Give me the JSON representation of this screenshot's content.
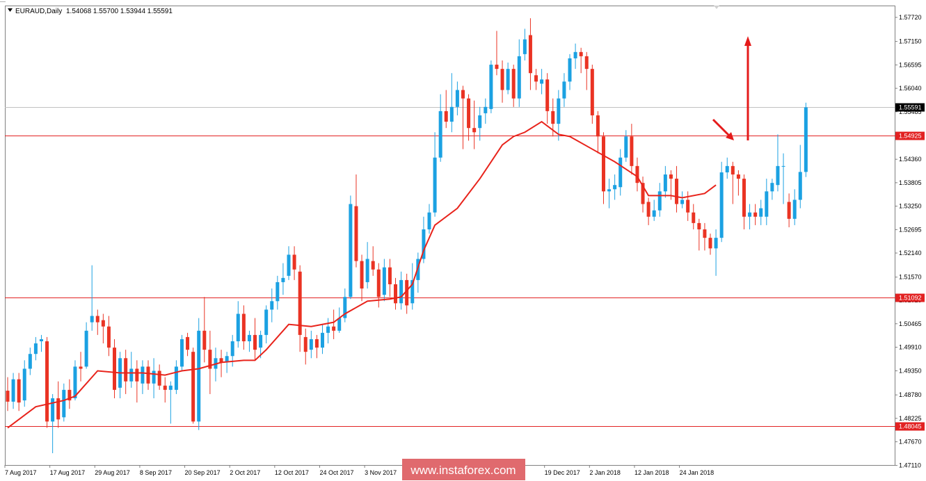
{
  "header": {
    "symbol": "EURAUD,Daily",
    "ohlc": "1.54068 1.55700 1.53944 1.55591",
    "menu_icon": "triangle-down-icon"
  },
  "watermark": "www.instaforex.com",
  "colors": {
    "bull": "#1BA1E2",
    "bear": "#EA3323",
    "ma": "#E8231B",
    "level": "#E22222",
    "current_line": "#C0C0C0",
    "current_box": "#000000",
    "watermark_bg": "#E06A6E",
    "arrow": "#E51B1B"
  },
  "chart_data": {
    "type": "candlestick",
    "symbol": "EURAUD",
    "timeframe": "Daily",
    "ylim": [
      1.4712,
      1.58
    ],
    "y_ticks": [
      "1.57720",
      "1.57150",
      "1.56595",
      "1.56040",
      "1.55485",
      "1.54925",
      "1.54360",
      "1.53805",
      "1.53250",
      "1.52695",
      "1.52140",
      "1.51570",
      "1.51025",
      "1.50465",
      "1.49910",
      "1.49350",
      "1.48780",
      "1.48225",
      "1.47670",
      "1.47110"
    ],
    "x_ticks": [
      {
        "i": 0,
        "label": "7 Aug 2017"
      },
      {
        "i": 8,
        "label": "17 Aug 2017"
      },
      {
        "i": 16,
        "label": "29 Aug 2017"
      },
      {
        "i": 24,
        "label": "8 Sep 2017"
      },
      {
        "i": 32,
        "label": "20 Sep 2017"
      },
      {
        "i": 40,
        "label": "2 Oct 2017"
      },
      {
        "i": 48,
        "label": "12 Oct 2017"
      },
      {
        "i": 56,
        "label": "24 Oct 2017"
      },
      {
        "i": 64,
        "label": "3 Nov 2017"
      },
      {
        "i": 96,
        "label": "19 Dec 2017"
      },
      {
        "i": 104,
        "label": "2 Jan 2018"
      },
      {
        "i": 112,
        "label": "12 Jan 2018"
      },
      {
        "i": 120,
        "label": "24 Jan 2018"
      }
    ],
    "levels": [
      "1.54925",
      "1.51092",
      "1.48045"
    ],
    "current_price": "1.55591",
    "candles": [
      [
        1.4888,
        1.4862,
        1.492,
        1.484
      ],
      [
        1.4862,
        1.4915,
        1.493,
        1.4845
      ],
      [
        1.4915,
        1.486,
        1.493,
        1.484
      ],
      [
        1.4865,
        1.494,
        1.496,
        1.485
      ],
      [
        1.494,
        1.4975,
        1.499,
        1.4925
      ],
      [
        1.4975,
        1.5,
        1.5015,
        1.496
      ],
      [
        1.5005,
        1.501,
        1.502,
        1.498
      ],
      [
        1.5005,
        1.4815,
        1.5015,
        1.48
      ],
      [
        1.4815,
        1.487,
        1.488,
        1.474
      ],
      [
        1.487,
        1.482,
        1.491,
        1.48
      ],
      [
        1.4825,
        1.489,
        1.4905,
        1.4815
      ],
      [
        1.489,
        1.4865,
        1.4915,
        1.4845
      ],
      [
        1.487,
        1.4945,
        1.496,
        1.4865
      ],
      [
        1.4945,
        1.494,
        1.498,
        1.491
      ],
      [
        1.4945,
        1.503,
        1.505,
        1.494
      ],
      [
        1.505,
        1.5065,
        1.5185,
        1.503
      ],
      [
        1.5065,
        1.505,
        1.508,
        1.502
      ],
      [
        1.5055,
        1.504,
        1.507,
        1.5
      ],
      [
        1.504,
        1.499,
        1.5065,
        1.497
      ],
      [
        1.499,
        1.489,
        1.501,
        1.487
      ],
      [
        1.4895,
        1.4965,
        1.498,
        1.487
      ],
      [
        1.4965,
        1.491,
        1.4985,
        1.488
      ],
      [
        1.491,
        1.494,
        1.498,
        1.4895
      ],
      [
        1.494,
        1.491,
        1.496,
        1.486
      ],
      [
        1.4905,
        1.4945,
        1.496,
        1.488
      ],
      [
        1.4945,
        1.4905,
        1.496,
        1.489
      ],
      [
        1.4905,
        1.4935,
        1.4965,
        1.487
      ],
      [
        1.4935,
        1.49,
        1.495,
        1.489
      ],
      [
        1.49,
        1.489,
        1.492,
        1.486
      ],
      [
        1.489,
        1.49,
        1.491,
        1.481
      ],
      [
        1.489,
        1.4945,
        1.496,
        1.488
      ],
      [
        1.4945,
        1.501,
        1.502,
        1.4935
      ],
      [
        1.5015,
        1.4985,
        1.5025,
        1.497
      ],
      [
        1.498,
        1.4815,
        1.499,
        1.481
      ],
      [
        1.4815,
        1.503,
        1.506,
        1.4795
      ],
      [
        1.503,
        1.4985,
        1.511,
        1.4955
      ],
      [
        1.4985,
        1.494,
        1.503,
        1.488
      ],
      [
        1.494,
        1.4965,
        1.499,
        1.491
      ],
      [
        1.4965,
        1.4955,
        1.4985,
        1.492
      ],
      [
        1.4955,
        1.497,
        1.498,
        1.493
      ],
      [
        1.497,
        1.5005,
        1.502,
        1.4945
      ],
      [
        1.5005,
        1.507,
        1.51,
        1.499
      ],
      [
        1.507,
        1.5005,
        1.509,
        1.4985
      ],
      [
        1.5005,
        1.502,
        1.503,
        1.498
      ],
      [
        1.502,
        1.4985,
        1.506,
        1.496
      ],
      [
        1.499,
        1.502,
        1.503,
        1.4965
      ],
      [
        1.502,
        1.508,
        1.509,
        1.5
      ],
      [
        1.508,
        1.51,
        1.513,
        1.505
      ],
      [
        1.51,
        1.5145,
        1.516,
        1.508
      ],
      [
        1.5145,
        1.5155,
        1.519,
        1.5115
      ],
      [
        1.516,
        1.521,
        1.523,
        1.515
      ],
      [
        1.521,
        1.5175,
        1.523,
        1.515
      ],
      [
        1.517,
        1.502,
        1.5185,
        1.498
      ],
      [
        1.5015,
        1.498,
        1.5035,
        1.495
      ],
      [
        1.4985,
        1.501,
        1.503,
        1.4965
      ],
      [
        1.501,
        1.499,
        1.502,
        1.4965
      ],
      [
        1.499,
        1.5025,
        1.5045,
        1.4975
      ],
      [
        1.5025,
        1.504,
        1.506,
        1.5
      ],
      [
        1.504,
        1.503,
        1.508,
        1.501
      ],
      [
        1.503,
        1.506,
        1.5085,
        1.5025
      ],
      [
        1.506,
        1.511,
        1.513,
        1.505
      ],
      [
        1.511,
        1.533,
        1.535,
        1.5105
      ],
      [
        1.5325,
        1.5195,
        1.54,
        1.518
      ],
      [
        1.5195,
        1.513,
        1.521,
        1.51
      ],
      [
        1.5145,
        1.52,
        1.524,
        1.513
      ],
      [
        1.5195,
        1.5175,
        1.523,
        1.516
      ],
      [
        1.5175,
        1.511,
        1.519,
        1.5085
      ],
      [
        1.5115,
        1.518,
        1.52,
        1.51
      ],
      [
        1.518,
        1.514,
        1.52,
        1.511
      ],
      [
        1.514,
        1.5095,
        1.5155,
        1.508
      ],
      [
        1.5095,
        1.515,
        1.517,
        1.508
      ],
      [
        1.515,
        1.509,
        1.5165,
        1.507
      ],
      [
        1.5095,
        1.515,
        1.519,
        1.508
      ],
      [
        1.515,
        1.52,
        1.5215,
        1.512
      ],
      [
        1.52,
        1.527,
        1.53,
        1.519
      ],
      [
        1.527,
        1.531,
        1.533,
        1.526
      ],
      [
        1.531,
        1.544,
        1.55,
        1.53
      ],
      [
        1.544,
        1.555,
        1.559,
        1.543
      ],
      [
        1.555,
        1.5525,
        1.56,
        1.551
      ],
      [
        1.5525,
        1.556,
        1.564,
        1.55
      ],
      [
        1.556,
        1.56,
        1.562,
        1.554
      ],
      [
        1.56,
        1.558,
        1.561,
        1.546
      ],
      [
        1.558,
        1.551,
        1.559,
        1.548
      ],
      [
        1.551,
        1.55,
        1.5575,
        1.546
      ],
      [
        1.551,
        1.554,
        1.556,
        1.548
      ],
      [
        1.5545,
        1.556,
        1.558,
        1.552
      ],
      [
        1.5555,
        1.566,
        1.567,
        1.5545
      ],
      [
        1.566,
        1.565,
        1.574,
        1.5635
      ],
      [
        1.565,
        1.56,
        1.567,
        1.557
      ],
      [
        1.56,
        1.565,
        1.5665,
        1.559
      ],
      [
        1.565,
        1.558,
        1.566,
        1.556
      ],
      [
        1.558,
        1.568,
        1.572,
        1.556
      ],
      [
        1.5685,
        1.572,
        1.5745,
        1.567
      ],
      [
        1.573,
        1.564,
        1.577,
        1.56
      ],
      [
        1.5635,
        1.562,
        1.565,
        1.56
      ],
      [
        1.5615,
        1.5625,
        1.565,
        1.559
      ],
      [
        1.5625,
        1.555,
        1.564,
        1.552
      ],
      [
        1.555,
        1.552,
        1.558,
        1.549
      ],
      [
        1.552,
        1.558,
        1.56,
        1.548
      ],
      [
        1.558,
        1.562,
        1.564,
        1.556
      ],
      [
        1.562,
        1.5675,
        1.5685,
        1.56
      ],
      [
        1.5675,
        1.569,
        1.571,
        1.565
      ],
      [
        1.569,
        1.568,
        1.57,
        1.564
      ],
      [
        1.568,
        1.565,
        1.569,
        1.56
      ],
      [
        1.565,
        1.554,
        1.566,
        1.552
      ],
      [
        1.554,
        1.549,
        1.555,
        1.545
      ],
      [
        1.549,
        1.536,
        1.55,
        1.533
      ],
      [
        1.536,
        1.5365,
        1.539,
        1.532
      ],
      [
        1.5365,
        1.5375,
        1.54,
        1.534
      ],
      [
        1.537,
        1.544,
        1.546,
        1.535
      ],
      [
        1.544,
        1.549,
        1.5505,
        1.543
      ],
      [
        1.549,
        1.542,
        1.552,
        1.54
      ],
      [
        1.542,
        1.538,
        1.544,
        1.536
      ],
      [
        1.538,
        1.533,
        1.5395,
        1.531
      ],
      [
        1.5335,
        1.53,
        1.5345,
        1.528
      ],
      [
        1.53,
        1.5315,
        1.534,
        1.529
      ],
      [
        1.5315,
        1.536,
        1.538,
        1.53
      ],
      [
        1.536,
        1.54,
        1.542,
        1.5345
      ],
      [
        1.54,
        1.539,
        1.541,
        1.534
      ],
      [
        1.539,
        1.533,
        1.542,
        1.531
      ],
      [
        1.533,
        1.534,
        1.536,
        1.532
      ],
      [
        1.534,
        1.531,
        1.536,
        1.529
      ],
      [
        1.531,
        1.5285,
        1.533,
        1.527
      ],
      [
        1.5285,
        1.527,
        1.5295,
        1.522
      ],
      [
        1.527,
        1.525,
        1.5285,
        1.522
      ],
      [
        1.525,
        1.5225,
        1.526,
        1.521
      ],
      [
        1.5225,
        1.525,
        1.527,
        1.516
      ],
      [
        1.525,
        1.5405,
        1.543,
        1.524
      ],
      [
        1.5405,
        1.542,
        1.544,
        1.539
      ],
      [
        1.542,
        1.54,
        1.543,
        1.533
      ],
      [
        1.54,
        1.539,
        1.541,
        1.535
      ],
      [
        1.539,
        1.53,
        1.54,
        1.527
      ],
      [
        1.53,
        1.531,
        1.533,
        1.527
      ],
      [
        1.531,
        1.53,
        1.533,
        1.528
      ],
      [
        1.53,
        1.532,
        1.534,
        1.528
      ],
      [
        1.53,
        1.536,
        1.539,
        1.528
      ],
      [
        1.536,
        1.538,
        1.539,
        1.534
      ],
      [
        1.5375,
        1.542,
        1.5495,
        1.536
      ],
      [
        1.542,
        1.542,
        1.545,
        1.533
      ],
      [
        1.5335,
        1.5295,
        1.5355,
        1.5275
      ],
      [
        1.5295,
        1.534,
        1.5365,
        1.528
      ],
      [
        1.534,
        1.5406,
        1.547,
        1.532
      ],
      [
        1.5406,
        1.5559,
        1.557,
        1.5394
      ]
    ],
    "ma": [
      [
        0,
        1.48
      ],
      [
        5,
        1.485
      ],
      [
        10,
        1.4865
      ],
      [
        12,
        1.4875
      ],
      [
        16,
        1.4935
      ],
      [
        20,
        1.493
      ],
      [
        24,
        1.493
      ],
      [
        28,
        1.4925
      ],
      [
        31,
        1.4935
      ],
      [
        34,
        1.494
      ],
      [
        38,
        1.4955
      ],
      [
        42,
        1.496
      ],
      [
        44,
        1.496
      ],
      [
        46,
        1.4985
      ],
      [
        50,
        1.5045
      ],
      [
        54,
        1.504
      ],
      [
        58,
        1.505
      ],
      [
        60,
        1.507
      ],
      [
        64,
        1.51
      ],
      [
        68,
        1.5105
      ],
      [
        70,
        1.511
      ],
      [
        72,
        1.514
      ],
      [
        74,
        1.522
      ],
      [
        76,
        1.528
      ],
      [
        80,
        1.532
      ],
      [
        84,
        1.539
      ],
      [
        86,
        1.543
      ],
      [
        88,
        1.547
      ],
      [
        90,
        1.549
      ],
      [
        92,
        1.55
      ],
      [
        95,
        1.5525
      ],
      [
        96,
        1.5515
      ],
      [
        98,
        1.5495
      ],
      [
        100,
        1.549
      ],
      [
        104,
        1.546
      ],
      [
        108,
        1.543
      ],
      [
        112,
        1.5395
      ],
      [
        114,
        1.535
      ],
      [
        118,
        1.535
      ],
      [
        120,
        1.5345
      ],
      [
        124,
        1.5355
      ],
      [
        126,
        1.5375
      ]
    ],
    "annotations": [
      {
        "type": "arrow",
        "direction": "down-right"
      },
      {
        "type": "arrow",
        "direction": "up"
      }
    ]
  }
}
